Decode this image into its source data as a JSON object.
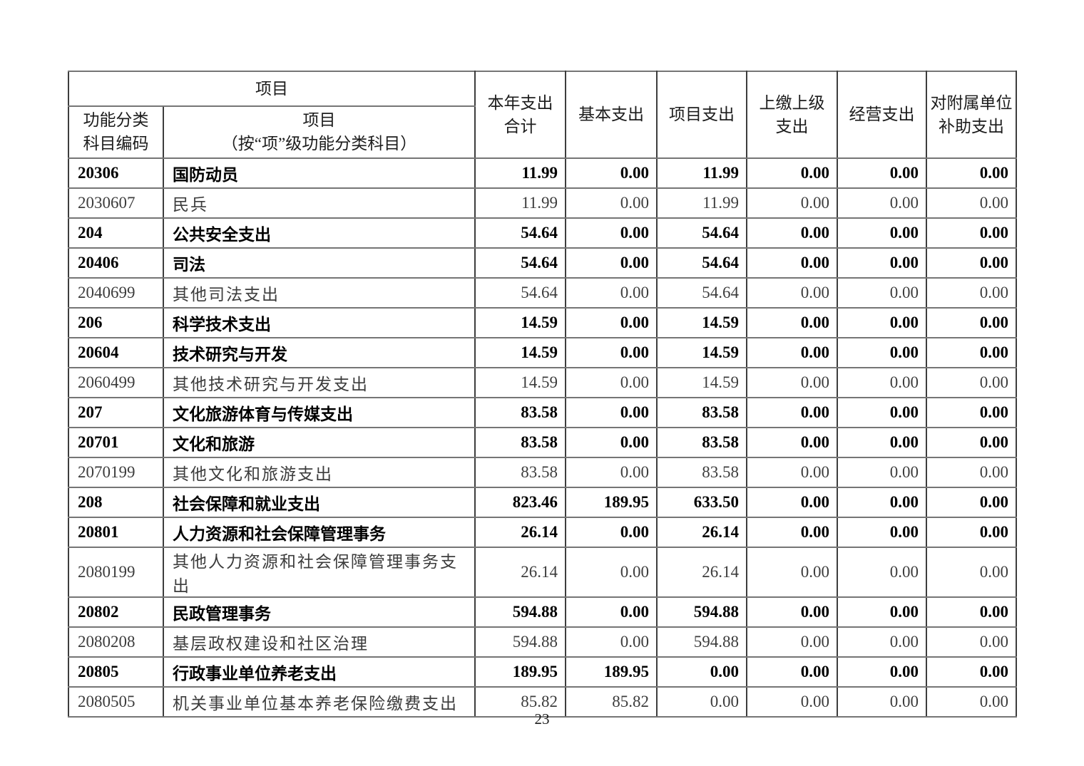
{
  "page_number": "23",
  "table": {
    "headers": {
      "group": "项目",
      "code": "功能分类\n科目编码",
      "item": "项目\n（按“项”级功能分类科目）",
      "total": "本年支出\n合计",
      "basic": "基本支出",
      "project": "项目支出",
      "upper": "上缴上级\n支出",
      "operating": "经营支出",
      "subsidy": "对附属单位\n补助支出"
    },
    "rows": [
      {
        "code": "20306",
        "name": "国防动员",
        "values": [
          "11.99",
          "0.00",
          "11.99",
          "0.00",
          "0.00",
          "0.00"
        ],
        "level": "summary"
      },
      {
        "code": "2030607",
        "name": "民兵",
        "values": [
          "11.99",
          "0.00",
          "11.99",
          "0.00",
          "0.00",
          "0.00"
        ],
        "level": "detail"
      },
      {
        "code": "204",
        "name": "公共安全支出",
        "values": [
          "54.64",
          "0.00",
          "54.64",
          "0.00",
          "0.00",
          "0.00"
        ],
        "level": "summary"
      },
      {
        "code": "20406",
        "name": "司法",
        "values": [
          "54.64",
          "0.00",
          "54.64",
          "0.00",
          "0.00",
          "0.00"
        ],
        "level": "summary"
      },
      {
        "code": "2040699",
        "name": "其他司法支出",
        "values": [
          "54.64",
          "0.00",
          "54.64",
          "0.00",
          "0.00",
          "0.00"
        ],
        "level": "detail"
      },
      {
        "code": "206",
        "name": "科学技术支出",
        "values": [
          "14.59",
          "0.00",
          "14.59",
          "0.00",
          "0.00",
          "0.00"
        ],
        "level": "summary"
      },
      {
        "code": "20604",
        "name": "技术研究与开发",
        "values": [
          "14.59",
          "0.00",
          "14.59",
          "0.00",
          "0.00",
          "0.00"
        ],
        "level": "summary"
      },
      {
        "code": "2060499",
        "name": "其他技术研究与开发支出",
        "values": [
          "14.59",
          "0.00",
          "14.59",
          "0.00",
          "0.00",
          "0.00"
        ],
        "level": "detail"
      },
      {
        "code": "207",
        "name": "文化旅游体育与传媒支出",
        "values": [
          "83.58",
          "0.00",
          "83.58",
          "0.00",
          "0.00",
          "0.00"
        ],
        "level": "summary"
      },
      {
        "code": "20701",
        "name": "文化和旅游",
        "values": [
          "83.58",
          "0.00",
          "83.58",
          "0.00",
          "0.00",
          "0.00"
        ],
        "level": "summary"
      },
      {
        "code": "2070199",
        "name": "其他文化和旅游支出",
        "values": [
          "83.58",
          "0.00",
          "83.58",
          "0.00",
          "0.00",
          "0.00"
        ],
        "level": "detail"
      },
      {
        "code": "208",
        "name": "社会保障和就业支出",
        "values": [
          "823.46",
          "189.95",
          "633.50",
          "0.00",
          "0.00",
          "0.00"
        ],
        "level": "summary"
      },
      {
        "code": "20801",
        "name": "人力资源和社会保障管理事务",
        "values": [
          "26.14",
          "0.00",
          "26.14",
          "0.00",
          "0.00",
          "0.00"
        ],
        "level": "summary"
      },
      {
        "code": "2080199",
        "name": "其他人力资源和社会保障管理事务支出",
        "values": [
          "26.14",
          "0.00",
          "26.14",
          "0.00",
          "0.00",
          "0.00"
        ],
        "level": "detail"
      },
      {
        "code": "20802",
        "name": "民政管理事务",
        "values": [
          "594.88",
          "0.00",
          "594.88",
          "0.00",
          "0.00",
          "0.00"
        ],
        "level": "summary"
      },
      {
        "code": "2080208",
        "name": "基层政权建设和社区治理",
        "values": [
          "594.88",
          "0.00",
          "594.88",
          "0.00",
          "0.00",
          "0.00"
        ],
        "level": "detail"
      },
      {
        "code": "20805",
        "name": "行政事业单位养老支出",
        "values": [
          "189.95",
          "189.95",
          "0.00",
          "0.00",
          "0.00",
          "0.00"
        ],
        "level": "summary"
      },
      {
        "code": "2080505",
        "name": "机关事业单位基本养老保险缴费支出",
        "values": [
          "85.82",
          "85.82",
          "0.00",
          "0.00",
          "0.00",
          "0.00"
        ],
        "level": "detail"
      }
    ]
  }
}
